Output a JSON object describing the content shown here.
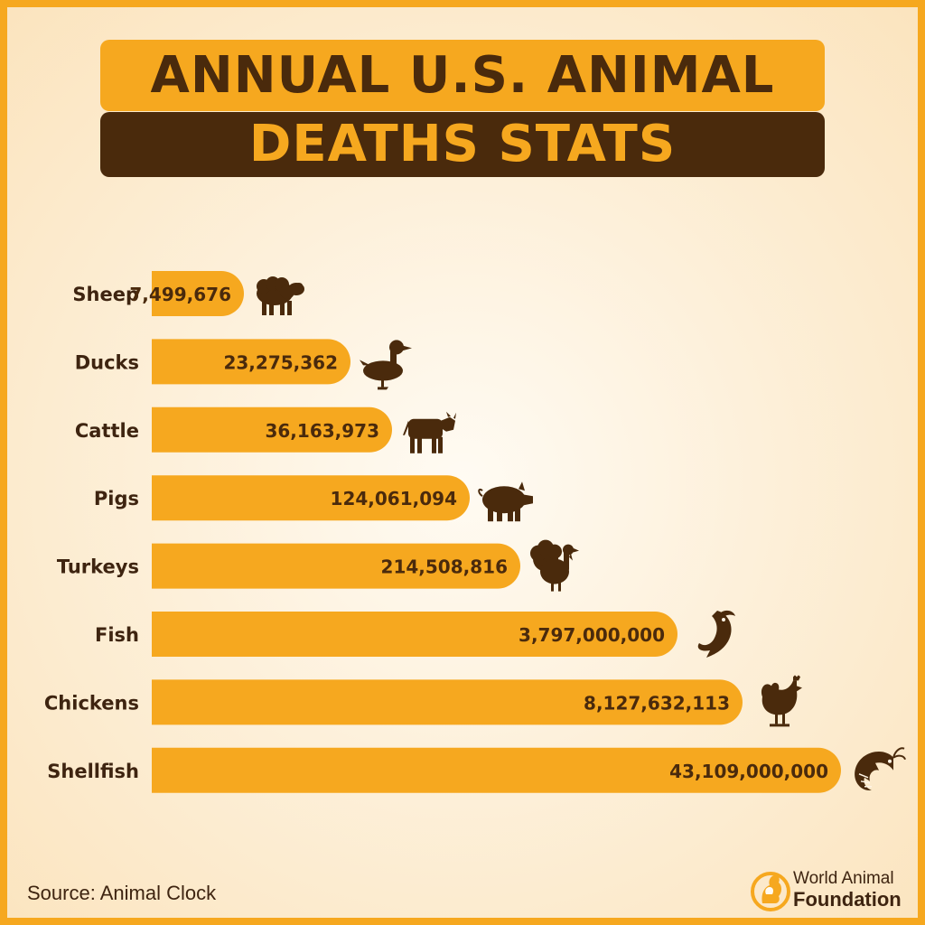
{
  "title": {
    "line1": "ANNUAL U.S. ANIMAL",
    "line2": "DEATHS STATS"
  },
  "chart_data": {
    "type": "bar",
    "orientation": "horizontal",
    "categories": [
      "Sheep",
      "Ducks",
      "Cattle",
      "Pigs",
      "Turkeys",
      "Fish",
      "Chickens",
      "Shellfish"
    ],
    "values": [
      7499676,
      23275362,
      36163973,
      124061094,
      214508816,
      3797000000,
      8127632113,
      43109000000
    ],
    "value_labels": [
      "7,499,676",
      "23,275,362",
      "36,163,973",
      "124,061,094",
      "214,508,816",
      "3,797,000,000",
      "8,127,632,113",
      "43,109,000,000"
    ],
    "icons": [
      "sheep-icon",
      "duck-icon",
      "cow-icon",
      "pig-icon",
      "turkey-icon",
      "fish-icon",
      "chicken-icon",
      "shrimp-icon"
    ],
    "scale": "non-linear (bars ordered by value, not proportional)",
    "grid": false,
    "bar_color": "#F6A81F",
    "label_color": "#4A2A0C"
  },
  "source": "Source: Animal Clock",
  "brand": {
    "line1": "World Animal",
    "line2": "Foundation",
    "logo_icon": "dog-cat-logo-icon"
  },
  "colors": {
    "accent": "#F6A81F",
    "dark": "#4A2A0C",
    "background": "#FDF0DA"
  }
}
